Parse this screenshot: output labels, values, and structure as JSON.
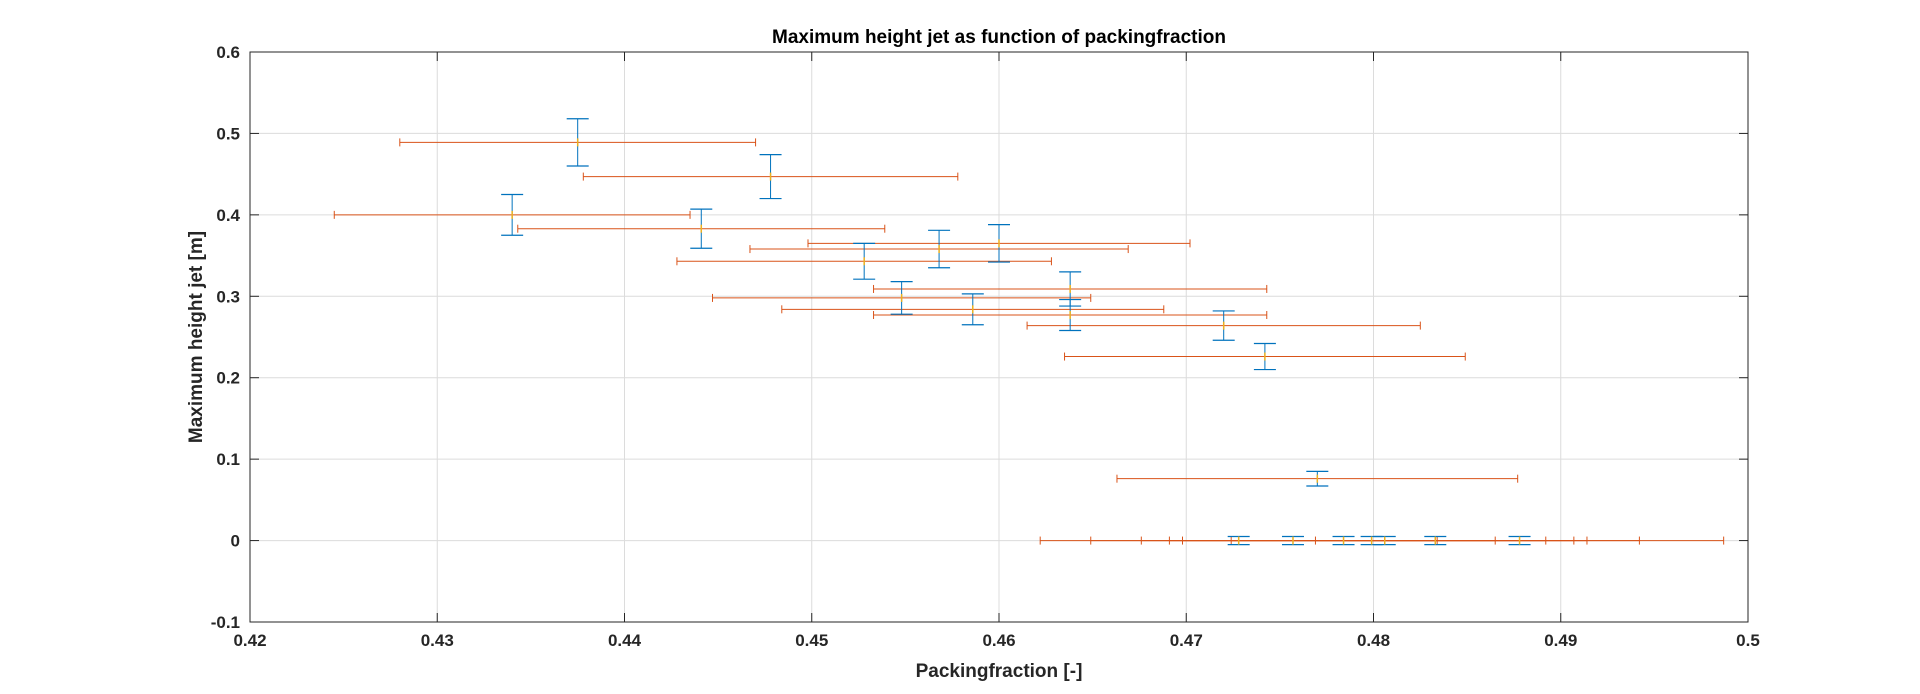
{
  "chart_data": {
    "type": "scatter",
    "title": "Maximum height jet as function of packingfraction",
    "xlabel": "Packingfraction [-]",
    "ylabel": "Maximum height jet [m]",
    "xlim": [
      0.42,
      0.5
    ],
    "ylim": [
      -0.1,
      0.6
    ],
    "xticks": [
      0.42,
      0.43,
      0.44,
      0.45,
      0.46,
      0.47,
      0.48,
      0.49,
      0.5
    ],
    "xtick_labels": [
      "0.42",
      "0.43",
      "0.44",
      "0.45",
      "0.46",
      "0.47",
      "0.48",
      "0.49",
      "0.5"
    ],
    "yticks": [
      -0.1,
      0,
      0.1,
      0.2,
      0.3,
      0.4,
      0.5,
      0.6
    ],
    "ytick_labels": [
      "-0.1",
      "0",
      "0.1",
      "0.2",
      "0.3",
      "0.4",
      "0.5",
      "0.6"
    ],
    "grid": true,
    "colors": {
      "y_error": "#0072BD",
      "x_error": "#D95319",
      "marker": "#EDB120",
      "axes": "#262626",
      "grid": "#dcdcdc"
    },
    "points": [
      {
        "x": 0.4375,
        "y": 0.489,
        "xerr": 0.0095,
        "yerr": 0.029
      },
      {
        "x": 0.4478,
        "y": 0.447,
        "xerr": 0.01,
        "yerr": 0.027
      },
      {
        "x": 0.434,
        "y": 0.4,
        "xerr": 0.0095,
        "yerr": 0.025
      },
      {
        "x": 0.4441,
        "y": 0.383,
        "xerr": 0.0098,
        "yerr": 0.024
      },
      {
        "x": 0.46,
        "y": 0.365,
        "xerr": 0.0102,
        "yerr": 0.023
      },
      {
        "x": 0.4568,
        "y": 0.358,
        "xerr": 0.0101,
        "yerr": 0.023
      },
      {
        "x": 0.4528,
        "y": 0.343,
        "xerr": 0.01,
        "yerr": 0.022
      },
      {
        "x": 0.4638,
        "y": 0.309,
        "xerr": 0.0105,
        "yerr": 0.021
      },
      {
        "x": 0.4548,
        "y": 0.298,
        "xerr": 0.0101,
        "yerr": 0.02
      },
      {
        "x": 0.4586,
        "y": 0.284,
        "xerr": 0.0102,
        "yerr": 0.019
      },
      {
        "x": 0.4638,
        "y": 0.277,
        "xerr": 0.0105,
        "yerr": 0.019
      },
      {
        "x": 0.472,
        "y": 0.264,
        "xerr": 0.0105,
        "yerr": 0.018
      },
      {
        "x": 0.4742,
        "y": 0.226,
        "xerr": 0.0107,
        "yerr": 0.016
      },
      {
        "x": 0.477,
        "y": 0.076,
        "xerr": 0.0107,
        "yerr": 0.009
      },
      {
        "x": 0.4728,
        "y": 0.0,
        "xerr": 0.0106,
        "yerr": 0.005
      },
      {
        "x": 0.4757,
        "y": 0.0,
        "xerr": 0.0108,
        "yerr": 0.005
      },
      {
        "x": 0.4784,
        "y": 0.0,
        "xerr": 0.0108,
        "yerr": 0.005
      },
      {
        "x": 0.4799,
        "y": 0.0,
        "xerr": 0.0108,
        "yerr": 0.005
      },
      {
        "x": 0.4806,
        "y": 0.0,
        "xerr": 0.0108,
        "yerr": 0.005
      },
      {
        "x": 0.4833,
        "y": 0.0,
        "xerr": 0.0109,
        "yerr": 0.005
      },
      {
        "x": 0.4878,
        "y": 0.0,
        "xerr": 0.0109,
        "yerr": 0.005
      }
    ]
  }
}
